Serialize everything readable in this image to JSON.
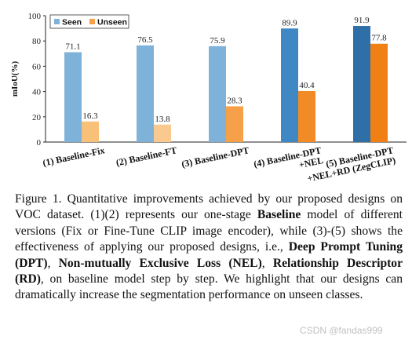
{
  "chart_data": {
    "type": "bar",
    "title": "",
    "xlabel": "",
    "ylabel": "mIoU(%)",
    "ylim": [
      0,
      100
    ],
    "yticks": [
      0,
      20,
      40,
      60,
      80,
      100
    ],
    "legend": {
      "position": "top-left",
      "entries": [
        "Seen",
        "Unseen"
      ]
    },
    "categories": [
      [
        "(1) Baseline-Fix"
      ],
      [
        "(2) Baseline-FT"
      ],
      [
        "(3) Baseline-DPT"
      ],
      [
        "(4) Baseline-DPT",
        "+NEL"
      ],
      [
        "(5) Baseline-DPT",
        "+NEL+RD (ZegCLIP)"
      ]
    ],
    "series": [
      {
        "name": "Seen",
        "values": [
          71.1,
          76.5,
          75.9,
          89.9,
          91.9
        ],
        "value_labels": [
          "71.1",
          "76.5",
          "75.9",
          "89.9",
          "91.9"
        ],
        "colors": [
          "#7fb2d9",
          "#7fb2d9",
          "#7fb2d9",
          "#3f88c4",
          "#2e6fa8"
        ]
      },
      {
        "name": "Unseen",
        "values": [
          16.3,
          13.8,
          28.3,
          40.4,
          77.8
        ],
        "value_labels": [
          "16.3",
          "13.8",
          "28.3",
          "40.4",
          "77.8"
        ],
        "colors": [
          "#f9c07a",
          "#f9c98f",
          "#f6a04a",
          "#f28b25",
          "#f07f14"
        ]
      }
    ],
    "legend_colors": {
      "Seen": "#7fb2d9",
      "Unseen": "#f6a04a"
    }
  },
  "caption": {
    "figure_label": "Figure 1.",
    "t1": " Quantitative improvements achieved by our proposed designs on VOC dataset. (1)(2) represents our one-stage ",
    "b1": "Baseline",
    "t2": " model of different versions (Fix or Fine-Tune CLIP image encoder), while (3)-(5) shows the effectiveness of applying our proposed designs, i.e., ",
    "b2": "Deep Prompt Tuning (DPT)",
    "t3": ", ",
    "b3": "Non-mutually Exclusive Loss (NEL)",
    "t4": ", ",
    "b4": "Relationship Descriptor (RD)",
    "t5": ", on baseline model step by step. We highlight that our designs can dramatically increase the segmentation performance on unseen classes."
  },
  "watermark": "CSDN @fandas999"
}
